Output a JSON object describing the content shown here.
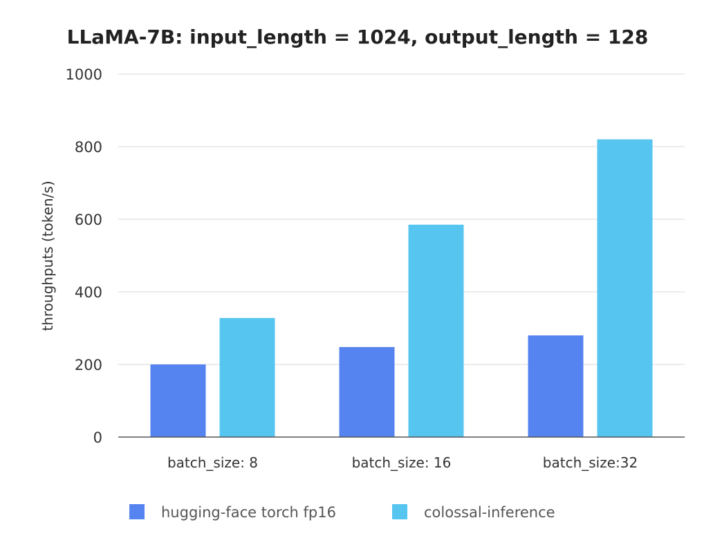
{
  "chart_data": {
    "type": "bar",
    "title": "LLaMA-7B: input_length = 1024, output_length = 128",
    "xlabel": "",
    "ylabel": "throughputs (token/s)",
    "ylim": [
      0,
      1000
    ],
    "yticks": [
      0,
      200,
      400,
      600,
      800,
      1000
    ],
    "categories": [
      "batch_size: 8",
      "batch_size: 16",
      "batch_size:32"
    ],
    "series": [
      {
        "name": "hugging-face torch fp16",
        "color": "#5584f0",
        "values": [
          200,
          248,
          280
        ]
      },
      {
        "name": "colossal-inference",
        "color": "#56c6f0",
        "values": [
          328,
          585,
          820
        ]
      }
    ],
    "grid": true,
    "legend_position": "bottom"
  }
}
